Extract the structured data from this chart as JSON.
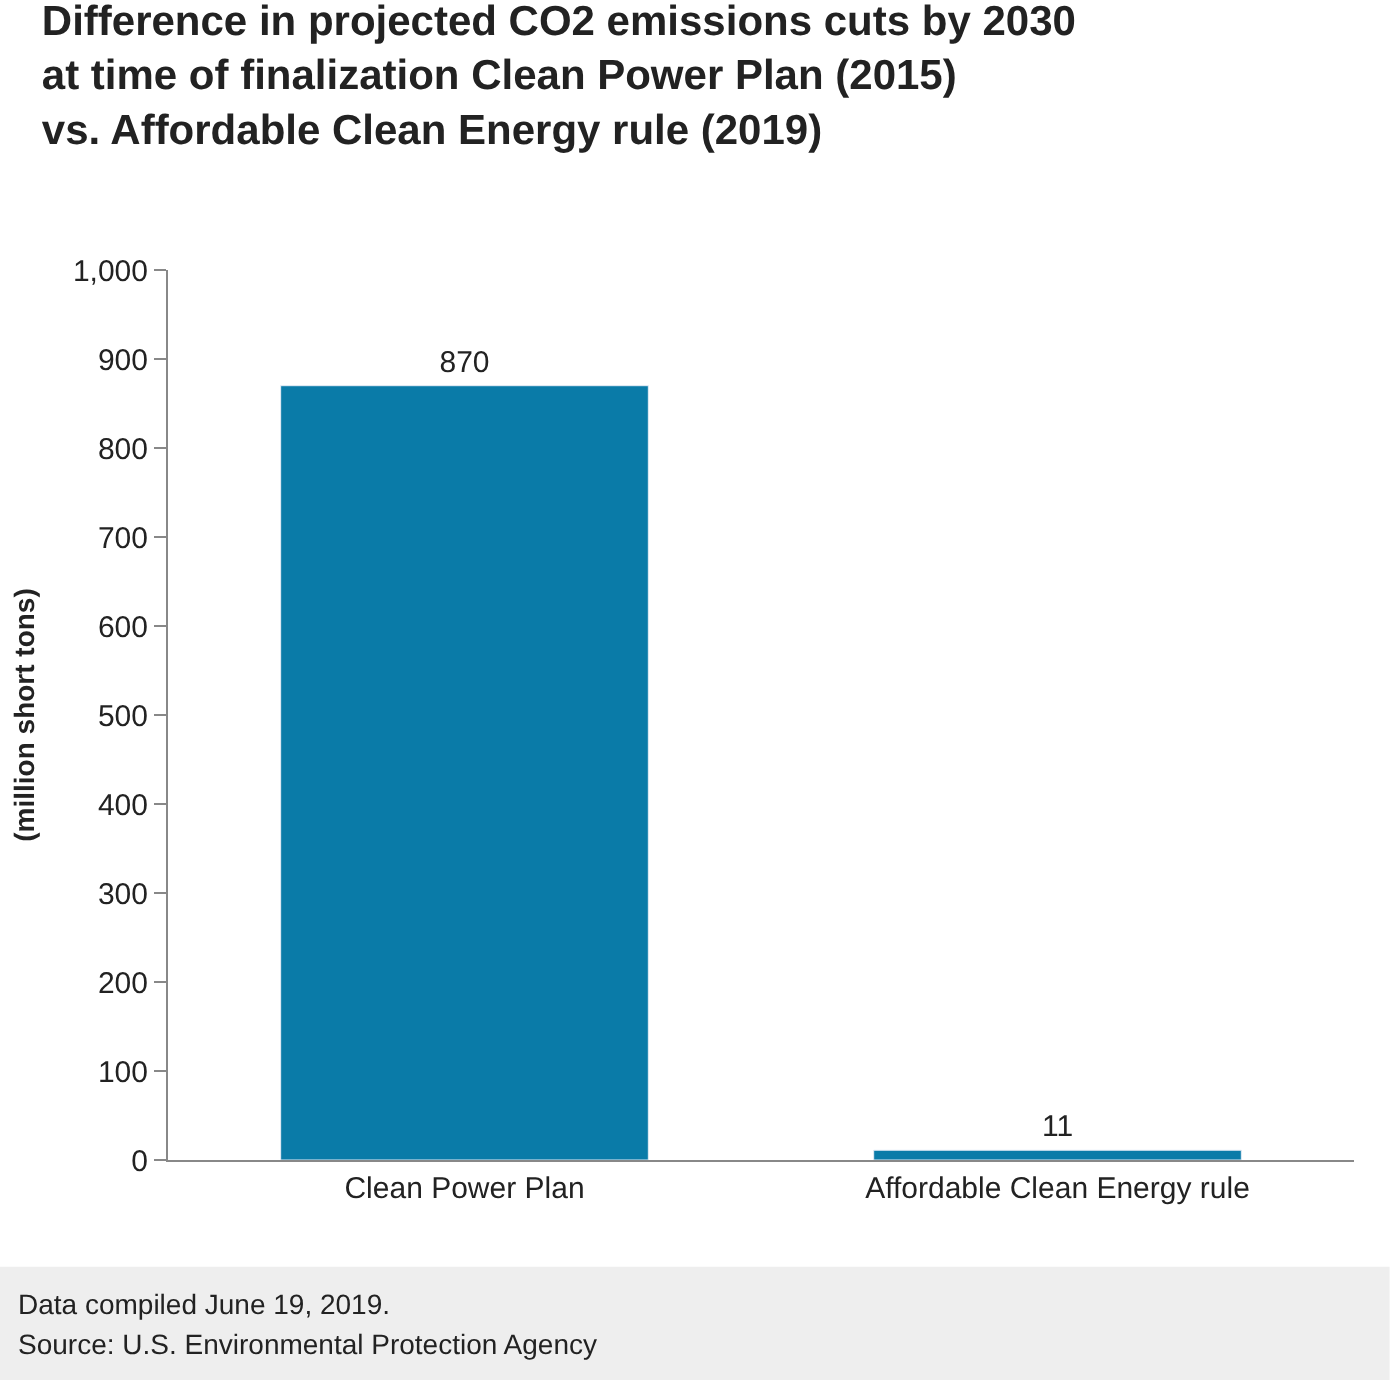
{
  "chart_data": {
    "type": "bar",
    "title": "Difference in projected CO2 emissions cuts by 2030 at time of finalization Clean Power Plan (2015) vs. Affordable Clean Energy rule (2019)",
    "ylabel": "(million short tons)",
    "categories": [
      "Clean Power Plan",
      "Affordable Clean Energy rule"
    ],
    "values": [
      870,
      11
    ],
    "color": "#0a7ba8",
    "data_labels": true,
    "ylim": [
      0,
      1000
    ],
    "yticks": [
      0,
      100,
      200,
      300,
      400,
      500,
      600,
      700,
      800,
      900,
      {
        "value": 1000,
        "label": "1,000"
      }
    ],
    "grid": false,
    "annotations": [
      "Data compiled June 19, 2019.",
      "Source: U.S. Environmental Protection Agency"
    ]
  }
}
